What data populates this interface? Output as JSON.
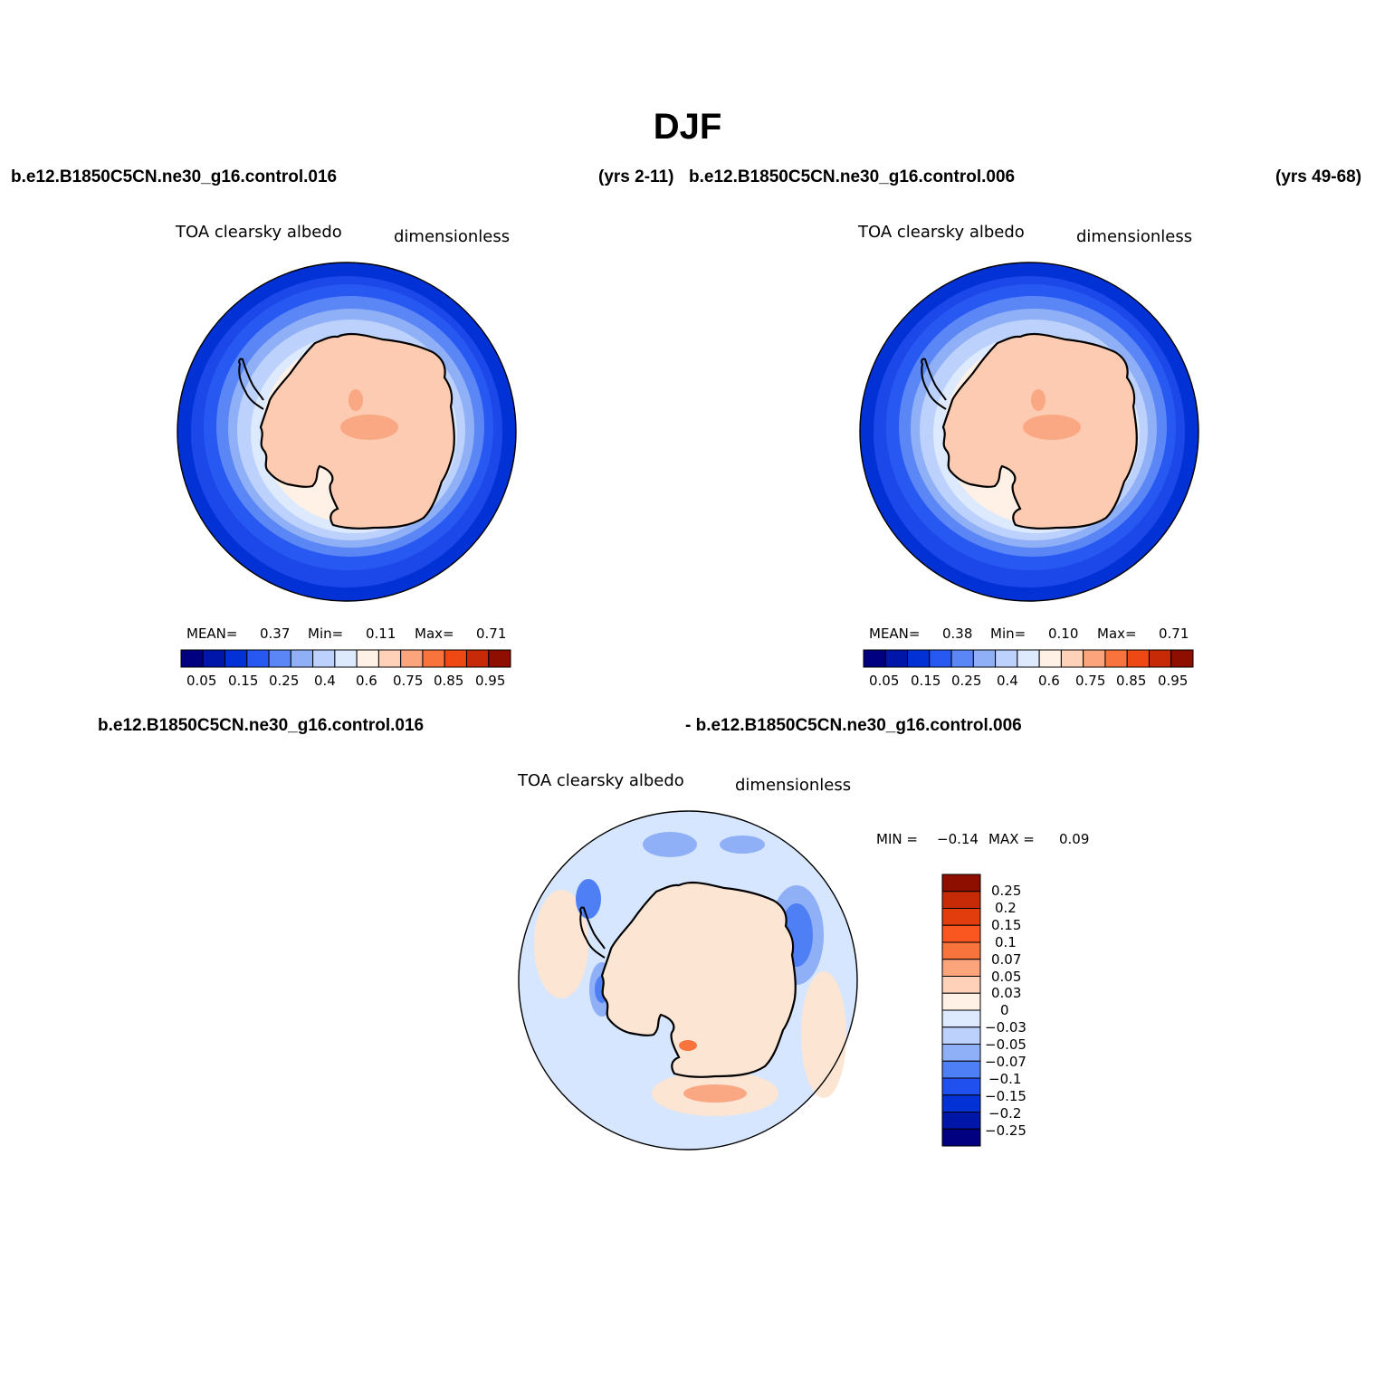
{
  "title": "DJF",
  "headers": {
    "left_case": "b.e12.B1850C5CN.ne30_g16.control.016",
    "left_years": "(yrs 2-11)",
    "right_case": "b.e12.B1850C5CN.ne30_g16.control.006",
    "right_years": "(yrs 49-68)",
    "diff_case_a": "b.e12.B1850C5CN.ne30_g16.control.016",
    "diff_case_b": "- b.e12.B1850C5CN.ne30_g16.control.006"
  },
  "panels": [
    {
      "id": "case1",
      "variable": "TOA clearsky albedo",
      "units": "dimensionless",
      "stats": {
        "mean_label": "MEAN=",
        "mean": "0.37",
        "min_label": "Min=",
        "min": "0.11",
        "max_label": "Max=",
        "max": "0.71"
      }
    },
    {
      "id": "case2",
      "variable": "TOA clearsky albedo",
      "units": "dimensionless",
      "stats": {
        "mean_label": "MEAN=",
        "mean": "0.38",
        "min_label": "Min=",
        "min": "0.10",
        "max_label": "Max=",
        "max": "0.71"
      }
    },
    {
      "id": "diff",
      "variable": "TOA clearsky albedo",
      "units": "dimensionless",
      "stats": {
        "min_label": "MIN =",
        "min": "−0.14",
        "max_label": "MAX =",
        "max": "0.09"
      }
    }
  ],
  "colorbar_abs": {
    "tick_labels": [
      "0.05",
      "0.15",
      "0.25",
      "0.4",
      "0.6",
      "0.75",
      "0.85",
      "0.95"
    ],
    "colors": [
      "#000080",
      "#0016a8",
      "#0232d6",
      "#2759f2",
      "#5b86f5",
      "#8fb0f7",
      "#bcd1fb",
      "#dde9fd",
      "#fff1e6",
      "#ffd1b8",
      "#fca57c",
      "#f9743c",
      "#ee4815",
      "#c62a06",
      "#8e0e00"
    ]
  },
  "colorbar_diff": {
    "tick_labels": [
      "0.25",
      "0.2",
      "0.15",
      "0.1",
      "0.07",
      "0.05",
      "0.03",
      "0",
      "−0.03",
      "−0.05",
      "−0.07",
      "−0.1",
      "−0.15",
      "−0.2",
      "−0.25"
    ],
    "colors_top_to_bottom": [
      "#8e0e00",
      "#c62a06",
      "#e23d0c",
      "#fa5620",
      "#f9743c",
      "#fca57c",
      "#ffd1b8",
      "#fff1e6",
      "#dde9fd",
      "#bcd1fb",
      "#8fb0f7",
      "#4f7ff5",
      "#2050ee",
      "#0232d6",
      "#0016a8",
      "#000080"
    ]
  },
  "map_colors": {
    "ocean_deep": "#0232d6",
    "ocean_mid": "#2759f2",
    "ice_edge": "#8fb0f7",
    "sea_ice": "#dde9fd",
    "land": "#fdcbb1",
    "land_high": "#f9a883",
    "diff_background": "#d6e6fe",
    "diff_land": "#fde5d4"
  }
}
